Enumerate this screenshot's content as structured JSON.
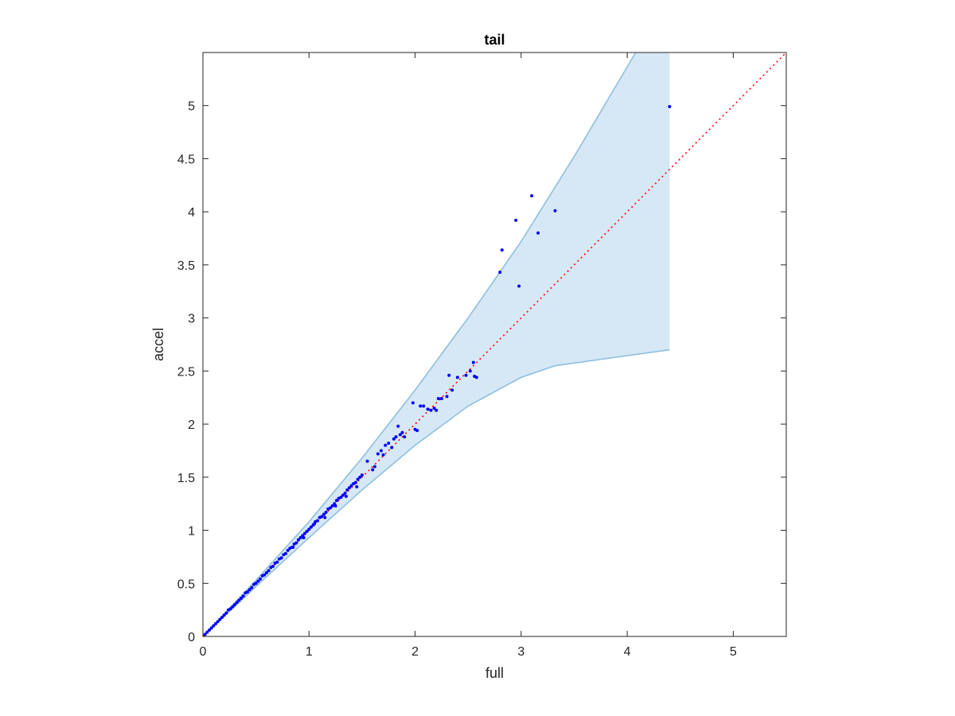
{
  "chart_data": {
    "type": "scatter",
    "title": "tail",
    "xlabel": "full",
    "ylabel": "accel",
    "xlim": [
      0,
      5.5
    ],
    "ylim": [
      0,
      5.5
    ],
    "xticks": [
      0,
      1,
      2,
      3,
      4,
      5
    ],
    "xtick_labels": [
      "0",
      "1",
      "2",
      "3",
      "4",
      "5"
    ],
    "yticks": [
      0,
      0.5,
      1,
      1.5,
      2,
      2.5,
      3,
      3.5,
      4,
      4.5,
      5
    ],
    "ytick_labels": [
      "0",
      "0.5",
      "1",
      "1.5",
      "2",
      "2.5",
      "3",
      "3.5",
      "4",
      "4.5",
      "5"
    ],
    "grid": false,
    "legend": "none",
    "colors": {
      "points": "#0000ff",
      "reference_line": "#ff0000",
      "band_fill": "#d6e8f5",
      "band_edge": "#8fbfe0",
      "axes": "#262626"
    },
    "reference_line": {
      "style": "dotted",
      "points": [
        [
          0,
          0
        ],
        [
          5.5,
          5.5
        ]
      ]
    },
    "band": {
      "upper": [
        [
          0,
          0
        ],
        [
          0.5,
          0.53
        ],
        [
          1,
          1.08
        ],
        [
          1.5,
          1.68
        ],
        [
          2,
          2.32
        ],
        [
          2.5,
          3.0
        ],
        [
          3,
          3.72
        ],
        [
          3.5,
          4.52
        ],
        [
          4.08,
          5.5
        ],
        [
          4.4,
          5.5
        ]
      ],
      "lower": [
        [
          0,
          0
        ],
        [
          0.5,
          0.47
        ],
        [
          1,
          0.93
        ],
        [
          1.5,
          1.38
        ],
        [
          2,
          1.8
        ],
        [
          2.5,
          2.17
        ],
        [
          3,
          2.44
        ],
        [
          3.32,
          2.55
        ],
        [
          4.4,
          2.7
        ]
      ]
    },
    "points": [
      [
        0.02,
        0.02
      ],
      [
        0.04,
        0.04
      ],
      [
        0.06,
        0.06
      ],
      [
        0.08,
        0.08
      ],
      [
        0.1,
        0.1
      ],
      [
        0.12,
        0.12
      ],
      [
        0.14,
        0.14
      ],
      [
        0.16,
        0.16
      ],
      [
        0.18,
        0.18
      ],
      [
        0.2,
        0.2
      ],
      [
        0.22,
        0.22
      ],
      [
        0.24,
        0.25
      ],
      [
        0.26,
        0.26
      ],
      [
        0.28,
        0.28
      ],
      [
        0.3,
        0.3
      ],
      [
        0.32,
        0.32
      ],
      [
        0.34,
        0.34
      ],
      [
        0.36,
        0.36
      ],
      [
        0.38,
        0.38
      ],
      [
        0.4,
        0.41
      ],
      [
        0.42,
        0.42
      ],
      [
        0.44,
        0.44
      ],
      [
        0.46,
        0.46
      ],
      [
        0.48,
        0.49
      ],
      [
        0.5,
        0.5
      ],
      [
        0.52,
        0.52
      ],
      [
        0.54,
        0.54
      ],
      [
        0.56,
        0.57
      ],
      [
        0.58,
        0.58
      ],
      [
        0.6,
        0.6
      ],
      [
        0.62,
        0.62
      ],
      [
        0.64,
        0.65
      ],
      [
        0.66,
        0.66
      ],
      [
        0.68,
        0.69
      ],
      [
        0.7,
        0.7
      ],
      [
        0.72,
        0.73
      ],
      [
        0.74,
        0.74
      ],
      [
        0.76,
        0.77
      ],
      [
        0.78,
        0.78
      ],
      [
        0.8,
        0.81
      ],
      [
        0.82,
        0.83
      ],
      [
        0.84,
        0.84
      ],
      [
        0.86,
        0.87
      ],
      [
        0.88,
        0.88
      ],
      [
        0.9,
        0.91
      ],
      [
        0.92,
        0.93
      ],
      [
        0.94,
        0.95
      ],
      [
        0.96,
        0.97
      ],
      [
        0.98,
        0.99
      ],
      [
        1.0,
        1.01
      ],
      [
        1.02,
        1.03
      ],
      [
        1.04,
        1.05
      ],
      [
        1.06,
        1.08
      ],
      [
        1.08,
        1.09
      ],
      [
        1.1,
        1.12
      ],
      [
        1.12,
        1.13
      ],
      [
        1.14,
        1.15
      ],
      [
        1.16,
        1.17
      ],
      [
        1.18,
        1.2
      ],
      [
        1.2,
        1.21
      ],
      [
        1.22,
        1.23
      ],
      [
        1.24,
        1.25
      ],
      [
        1.26,
        1.28
      ],
      [
        1.28,
        1.3
      ],
      [
        1.3,
        1.31
      ],
      [
        1.32,
        1.33
      ],
      [
        1.34,
        1.35
      ],
      [
        1.36,
        1.38
      ],
      [
        1.38,
        1.4
      ],
      [
        1.4,
        1.42
      ],
      [
        1.42,
        1.44
      ],
      [
        1.44,
        1.45
      ],
      [
        1.46,
        1.48
      ],
      [
        1.48,
        1.5
      ],
      [
        1.5,
        1.52
      ],
      [
        0.85,
        0.84
      ],
      [
        0.95,
        0.93
      ],
      [
        1.05,
        1.06
      ],
      [
        1.15,
        1.12
      ],
      [
        1.25,
        1.23
      ],
      [
        1.35,
        1.32
      ],
      [
        1.45,
        1.41
      ],
      [
        1.55,
        1.65
      ],
      [
        1.6,
        1.57
      ],
      [
        1.62,
        1.6
      ],
      [
        1.65,
        1.72
      ],
      [
        1.68,
        1.75
      ],
      [
        1.7,
        1.71
      ],
      [
        1.72,
        1.8
      ],
      [
        1.75,
        1.82
      ],
      [
        1.78,
        1.78
      ],
      [
        1.8,
        1.86
      ],
      [
        1.82,
        1.88
      ],
      [
        1.84,
        1.98
      ],
      [
        1.86,
        1.9
      ],
      [
        1.88,
        1.92
      ],
      [
        1.9,
        1.88
      ],
      [
        1.98,
        2.2
      ],
      [
        2.0,
        1.95
      ],
      [
        2.02,
        1.94
      ],
      [
        2.05,
        2.17
      ],
      [
        2.08,
        2.17
      ],
      [
        2.12,
        2.14
      ],
      [
        2.15,
        2.13
      ],
      [
        2.18,
        2.15
      ],
      [
        2.2,
        2.13
      ],
      [
        2.22,
        2.24
      ],
      [
        2.25,
        2.24
      ],
      [
        2.3,
        2.26
      ],
      [
        2.32,
        2.46
      ],
      [
        2.35,
        2.32
      ],
      [
        2.4,
        2.44
      ],
      [
        2.48,
        2.46
      ],
      [
        2.52,
        2.5
      ],
      [
        2.55,
        2.58
      ],
      [
        2.58,
        2.44
      ],
      [
        2.56,
        2.45
      ],
      [
        2.8,
        3.43
      ],
      [
        2.82,
        3.64
      ],
      [
        2.95,
        3.92
      ],
      [
        2.98,
        3.3
      ],
      [
        3.1,
        4.15
      ],
      [
        3.16,
        3.8
      ],
      [
        3.32,
        4.01
      ],
      [
        4.4,
        4.99
      ]
    ]
  }
}
